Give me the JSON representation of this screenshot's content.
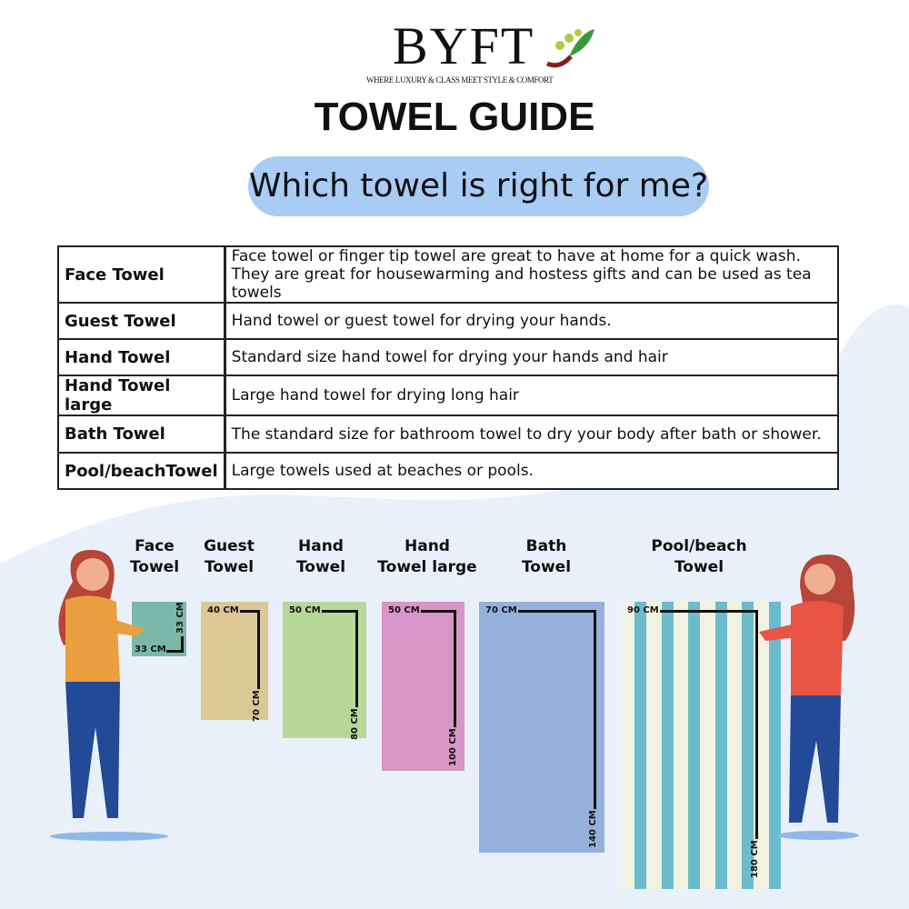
{
  "brand": {
    "name": "BYFT",
    "tagline": "WHERE LUXURY & CLASS MEET STYLE & COMFORT"
  },
  "title": "TOWEL GUIDE",
  "subtitle": "Which towel is right for me?",
  "table": [
    {
      "name": "Face Towel",
      "desc": "Face towel or finger tip towel are great to have at home for a quick wash.",
      "desc2": "They are great for housewarming and hostess gifts and can be used as tea towels"
    },
    {
      "name": "Guest Towel",
      "desc": "Hand towel or guest towel for drying your hands."
    },
    {
      "name": "Hand Towel",
      "desc": "Standard size hand towel for drying your hands and hair"
    },
    {
      "name": "Hand Towel large",
      "desc": "Large hand towel for drying long hair"
    },
    {
      "name": "Bath Towel",
      "desc": "The standard size for bathroom towel to dry your body after bath or shower."
    },
    {
      "name": "Pool/beachTowel",
      "desc": "Large towels used at beaches or pools."
    }
  ],
  "towels": [
    {
      "l1": "Face",
      "l2": "Towel",
      "w": "33 CM",
      "h": "33 CM",
      "color": "#7ab8a9"
    },
    {
      "l1": "Guest",
      "l2": "Towel",
      "w": "40 CM",
      "h": "70 CM",
      "color": "#dcc896"
    },
    {
      "l1": "Hand",
      "l2": "Towel",
      "w": "50 CM",
      "h": "80 CM",
      "color": "#b8d898"
    },
    {
      "l1": "Hand",
      "l2": "Towel large",
      "w": "50 CM",
      "h": "100 CM",
      "color": "#d895c8"
    },
    {
      "l1": "Bath",
      "l2": "Towel",
      "w": "70 CM",
      "h": "140 CM",
      "color": "#96b0dc"
    },
    {
      "l1": "Pool/beach",
      "l2": "Towel",
      "w": "90 CM",
      "h": "180 CM",
      "color": "#f2f2e2",
      "stripe": "#6abccc"
    }
  ]
}
